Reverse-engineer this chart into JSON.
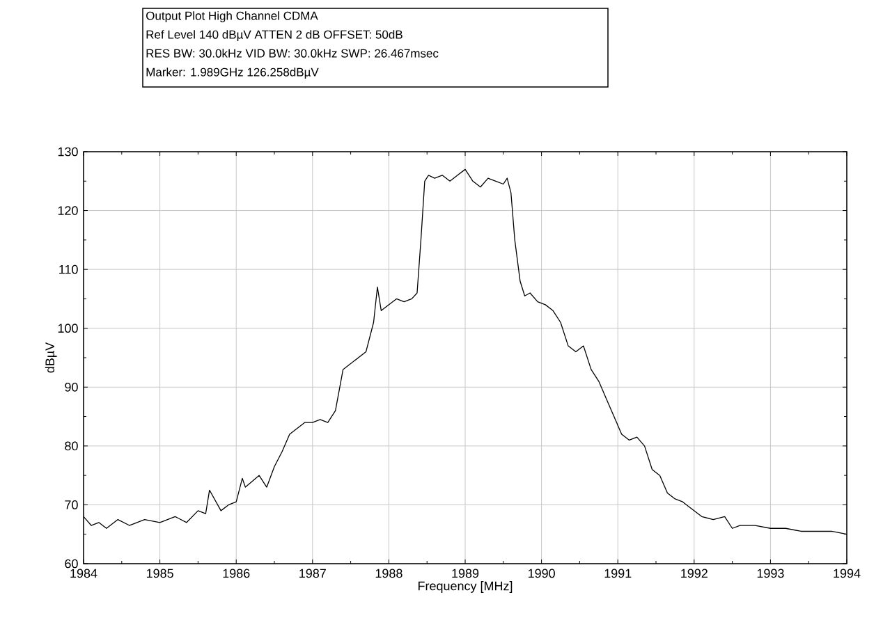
{
  "chart_data": {
    "type": "line",
    "title": "Output Plot High Channel CDMA",
    "annotations": [
      "Ref Level 140 dBµV    ATTEN 2 dB    OFFSET: 50dB",
      "RES BW: 30.0kHz  VID BW: 30.0kHz  SWP: 26.467msec",
      "Marker: 1.989GHz  126.258dBµV"
    ],
    "xlabel": "Frequency [MHz]",
    "ylabel": "dBµV",
    "xlim": [
      1984,
      1994
    ],
    "ylim": [
      60,
      130
    ],
    "xticks": [
      1984,
      {
        "value": 1984.5,
        "label": null
      },
      1985,
      {
        "value": 1985.5,
        "label": null
      },
      1986,
      {
        "value": 1986.5,
        "label": null
      },
      1987,
      {
        "value": 1987.5,
        "label": null
      },
      1988,
      {
        "value": 1988.5,
        "label": null
      },
      1989,
      {
        "value": 1989.5,
        "label": null
      },
      1990,
      {
        "value": 1990.5,
        "label": null
      },
      1991,
      {
        "value": 1991.5,
        "label": null
      },
      1992,
      {
        "value": 1992.5,
        "label": null
      },
      1993,
      {
        "value": 1993.5,
        "label": null
      },
      1994
    ],
    "yticks": [
      60,
      {
        "value": 65,
        "label": null
      },
      70,
      {
        "value": 75,
        "label": null
      },
      80,
      {
        "value": 85,
        "label": null
      },
      90,
      {
        "value": 95,
        "label": null
      },
      100,
      {
        "value": 105,
        "label": null
      },
      110,
      {
        "value": 115,
        "label": null
      },
      120,
      {
        "value": 125,
        "label": null
      },
      130
    ],
    "grid": true,
    "marker": "none",
    "line_style": "solid",
    "series": [
      {
        "color": "#000000",
        "x": [
          1984.0,
          1984.1,
          1984.2,
          1984.3,
          1984.45,
          1984.6,
          1984.8,
          1985.0,
          1985.2,
          1985.35,
          1985.5,
          1985.6,
          1985.65,
          1985.8,
          1985.9,
          1986.0,
          1986.08,
          1986.12,
          1986.3,
          1986.4,
          1986.5,
          1986.6,
          1986.7,
          1986.8,
          1986.9,
          1987.0,
          1987.1,
          1987.2,
          1987.3,
          1987.4,
          1987.5,
          1987.6,
          1987.7,
          1987.8,
          1987.85,
          1987.9,
          1988.0,
          1988.1,
          1988.2,
          1988.3,
          1988.37,
          1988.42,
          1988.47,
          1988.52,
          1988.6,
          1988.7,
          1988.8,
          1988.9,
          1989.0,
          1989.1,
          1989.2,
          1989.3,
          1989.4,
          1989.5,
          1989.55,
          1989.6,
          1989.65,
          1989.72,
          1989.78,
          1989.85,
          1989.95,
          1990.05,
          1990.15,
          1990.25,
          1990.35,
          1990.45,
          1990.55,
          1990.65,
          1990.75,
          1990.85,
          1990.95,
          1991.05,
          1991.15,
          1991.25,
          1991.35,
          1991.45,
          1991.55,
          1991.65,
          1991.75,
          1991.85,
          1991.95,
          1992.1,
          1992.25,
          1992.4,
          1992.5,
          1992.6,
          1992.8,
          1993.0,
          1993.2,
          1993.4,
          1993.6,
          1993.8,
          1994.0
        ],
        "values": [
          68,
          66.5,
          67,
          66,
          67.5,
          66.5,
          67.5,
          67,
          68,
          67,
          69,
          68.5,
          72.5,
          69,
          70,
          70.5,
          74.5,
          73,
          75,
          73,
          76.5,
          79,
          82,
          83,
          84,
          84,
          84.5,
          84,
          86,
          93,
          94,
          95,
          96,
          101,
          107,
          103,
          104,
          105,
          104.5,
          105,
          106,
          115,
          125,
          126,
          125.5,
          126,
          125,
          126,
          127,
          125,
          124,
          125.5,
          125,
          124.5,
          125.5,
          123,
          115,
          108,
          105.5,
          106,
          104.5,
          104,
          103,
          101,
          97,
          96,
          97,
          93,
          91,
          88,
          85,
          82,
          81,
          81.5,
          80,
          76,
          75,
          72,
          71,
          70.5,
          69.5,
          68,
          67.5,
          68,
          66,
          66.5,
          66.5,
          66,
          66,
          65.5,
          65.5,
          65.5,
          65
        ]
      }
    ]
  }
}
